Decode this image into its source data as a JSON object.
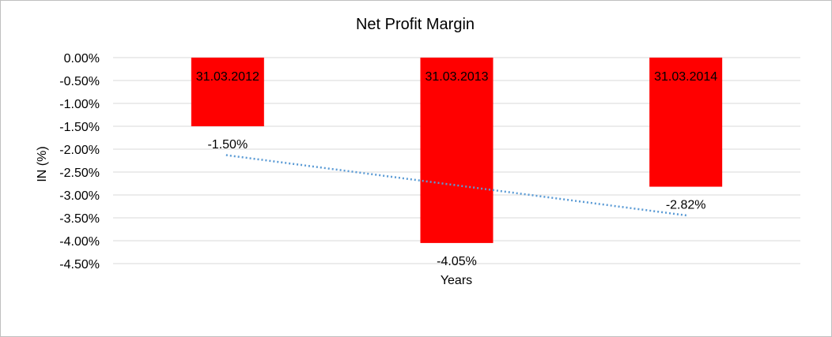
{
  "chart_data": {
    "type": "bar",
    "title": "Net Profit Margin",
    "xlabel": "Years",
    "ylabel": "IN (%)",
    "categories": [
      "31.03.2012",
      "31.03.2013",
      "31.03.2014"
    ],
    "values": [
      -1.5,
      -4.05,
      -2.82
    ],
    "value_labels": [
      "-1.50%",
      "-4.05%",
      "-2.82%"
    ],
    "ylim": [
      -4.5,
      0
    ],
    "y_ticks": [
      0,
      -0.5,
      -1,
      -1.5,
      -2,
      -2.5,
      -3,
      -3.5,
      -4,
      -4.5
    ],
    "y_tick_labels": [
      "0.00%",
      "-0.50%",
      "-1.00%",
      "-1.50%",
      "-2.00%",
      "-2.50%",
      "-3.00%",
      "-3.50%",
      "-4.00%",
      "-4.50%"
    ],
    "grid": true,
    "trendline": "linear",
    "bar_color": "#ff0000",
    "trendline_color": "#5b9bd5",
    "gridline_color": "#d9d9d9"
  }
}
